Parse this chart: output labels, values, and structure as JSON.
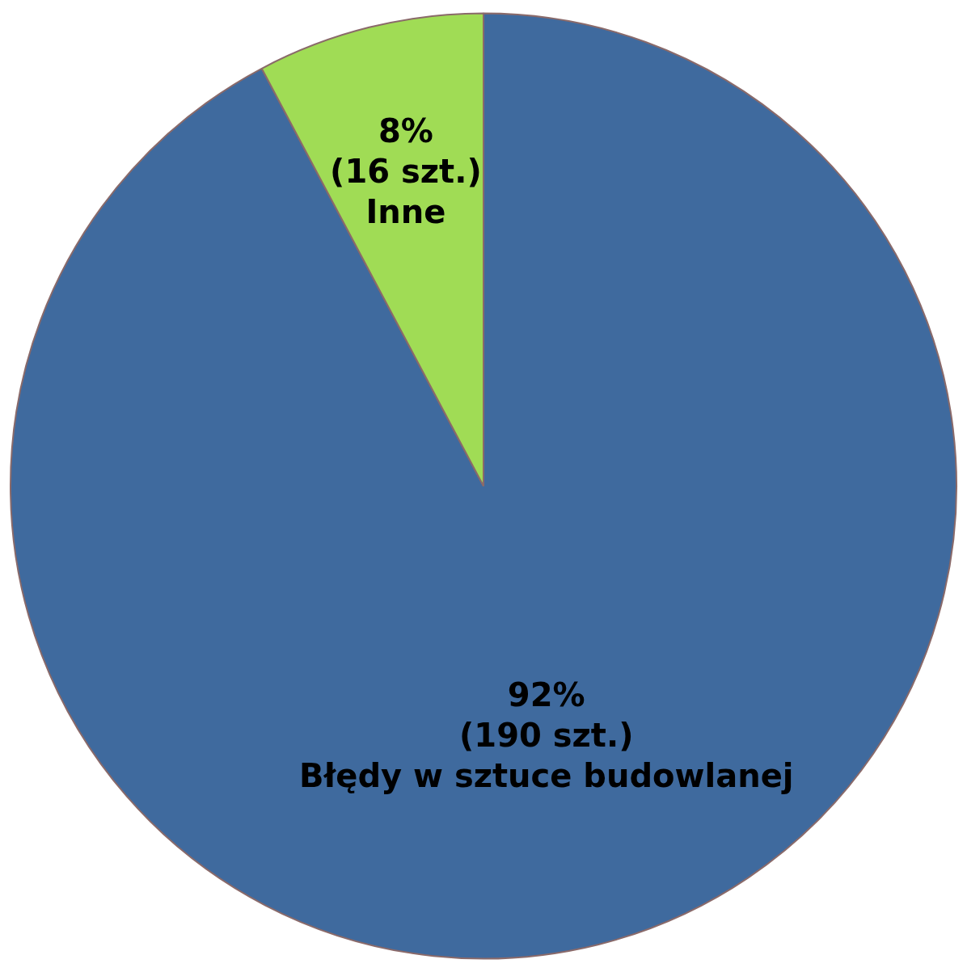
{
  "chart_data": {
    "type": "pie",
    "categories": [
      "Błędy w sztuce budowlanej",
      "Inne"
    ],
    "values": [
      190,
      16
    ],
    "colors": [
      "#3f6a9e",
      "#a0dc55"
    ],
    "value_labels": [
      "92%\n(190 szt.)",
      "8%\n(16 szt.)"
    ],
    "legend": false
  }
}
